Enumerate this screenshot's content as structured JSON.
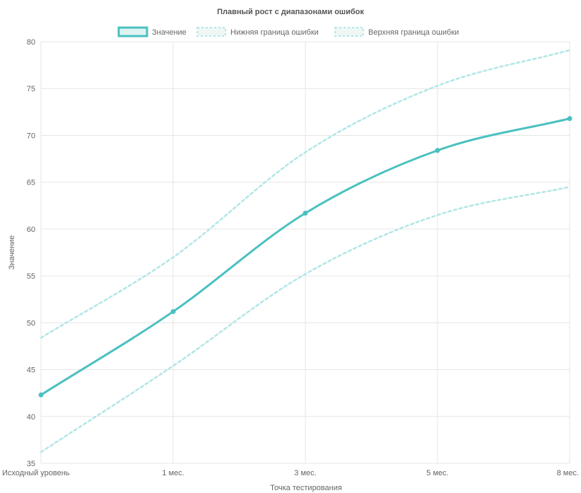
{
  "chart_data": {
    "type": "line",
    "title": "Плавный рост с диапазонами ошибок",
    "xlabel": "Точка тестирования",
    "ylabel": "Значение",
    "categories": [
      "Исходный уровень",
      "1 мес.",
      "3 мес.",
      "5 мес.",
      "8 мес."
    ],
    "ylim": [
      35,
      80
    ],
    "yticks": [
      35,
      40,
      45,
      50,
      55,
      60,
      65,
      70,
      75,
      80
    ],
    "grid": true,
    "legend_position": "top",
    "series": [
      {
        "name": "Значение",
        "values": [
          42.3,
          51.2,
          61.7,
          68.4,
          71.8
        ],
        "color": "#4bc0c0",
        "style": "solid",
        "points": true
      },
      {
        "name": "Нижняя граница ошибки",
        "values": [
          36.2,
          45.4,
          55.2,
          61.5,
          64.5
        ],
        "color": "#b2e6e6",
        "style": "dashed",
        "points": false
      },
      {
        "name": "Верхняя граница ошибки",
        "values": [
          48.4,
          57.0,
          68.2,
          75.3,
          79.1
        ],
        "color": "#b2e6e6",
        "style": "dashed",
        "points": false
      }
    ]
  }
}
